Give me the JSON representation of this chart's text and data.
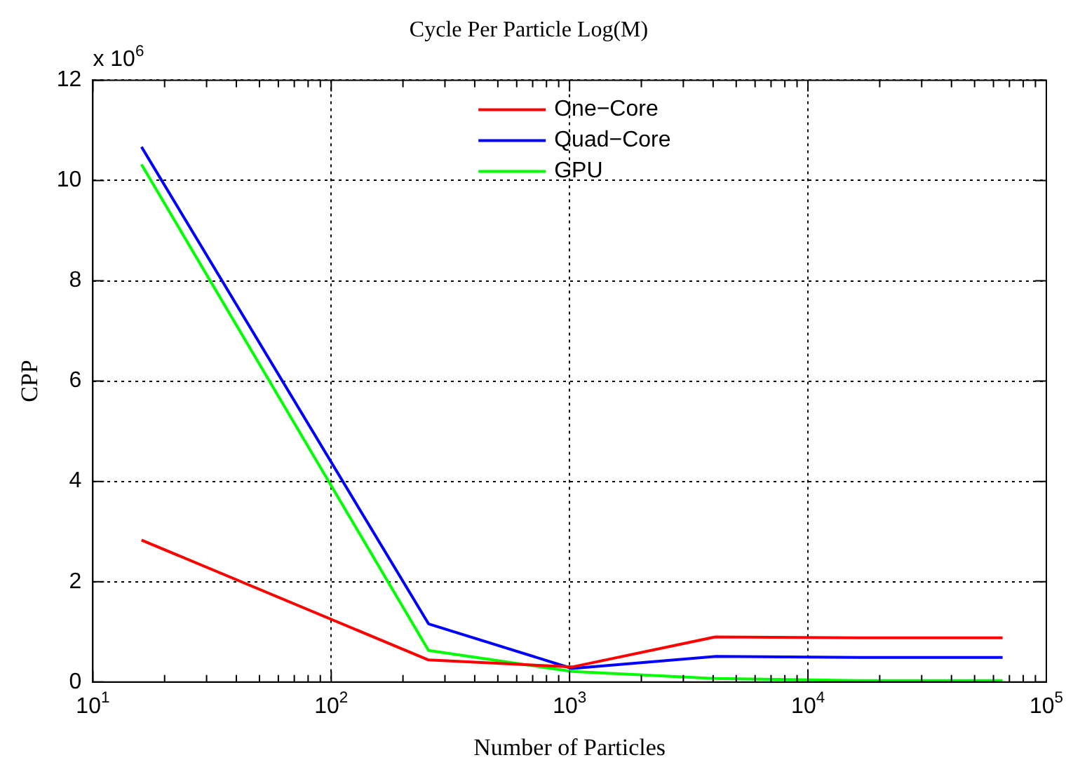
{
  "chart_data": {
    "type": "line",
    "title": "Cycle Per Particle Log(M)",
    "xlabel": "Number of Particles",
    "ylabel": "CPP",
    "x": [
      16,
      256,
      1024,
      4096,
      16384,
      65536
    ],
    "series": [
      {
        "name": "One−Core",
        "color": "#ff0000",
        "values": [
          2.83,
          0.44,
          0.3,
          0.9,
          0.88,
          0.88
        ]
      },
      {
        "name": "Quad−Core",
        "color": "#0000ff",
        "values": [
          10.67,
          1.16,
          0.27,
          0.51,
          0.49,
          0.49
        ]
      },
      {
        "name": "GPU",
        "color": "#00ff00",
        "values": [
          10.32,
          0.63,
          0.21,
          0.07,
          0.03,
          0.03
        ]
      }
    ],
    "log": "x",
    "xlim": [
      10,
      100000
    ],
    "xticks": [
      {
        "value": 10,
        "label": "10$^{1}$"
      },
      {
        "value": 100,
        "label": "10$^{2}$"
      },
      {
        "value": 1000,
        "label": "10$^{3}$"
      },
      {
        "value": 10000,
        "label": "10$^{4}$"
      },
      {
        "value": 100000,
        "label": "10$^{5}$"
      }
    ],
    "ylim": [
      0,
      12
    ],
    "yticks": [
      0,
      2,
      4,
      6,
      8,
      10,
      12
    ],
    "annotations": [
      "x 10$^{6}$"
    ],
    "grid": true,
    "legend": "top",
    "marker": "none",
    "line_style": "solid"
  }
}
